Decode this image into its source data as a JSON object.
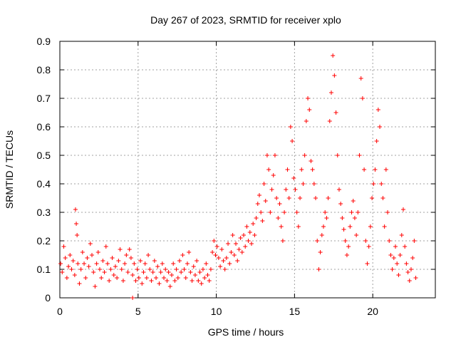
{
  "chart_data": {
    "type": "scatter",
    "title": "Day 267 of 2023, SRMTID for receiver xplo",
    "xlabel": "GPS time / hours",
    "ylabel": "SRMTID / TECUs",
    "xlim": [
      0,
      24
    ],
    "ylim": [
      0,
      0.9
    ],
    "x_ticks": [
      "0",
      "5",
      "10",
      "15",
      "20"
    ],
    "y_ticks": [
      "0",
      "0.1",
      "0.2",
      "0.3",
      "0.4",
      "0.5",
      "0.6",
      "0.7",
      "0.8",
      "0.9"
    ],
    "grid": true,
    "marker": "+",
    "color": "#ff0000",
    "series": [
      {
        "name": "SRMTID",
        "points": [
          [
            0.05,
            0.12
          ],
          [
            0.15,
            0.09
          ],
          [
            0.25,
            0.18
          ],
          [
            0.35,
            0.14
          ],
          [
            0.45,
            0.07
          ],
          [
            0.55,
            0.11
          ],
          [
            0.65,
            0.15
          ],
          [
            0.75,
            0.1
          ],
          [
            0.85,
            0.13
          ],
          [
            0.95,
            0.08
          ],
          [
            1.0,
            0.31
          ],
          [
            1.05,
            0.26
          ],
          [
            1.1,
            0.22
          ],
          [
            1.15,
            0.12
          ],
          [
            1.25,
            0.05
          ],
          [
            1.35,
            0.1
          ],
          [
            1.45,
            0.16
          ],
          [
            1.55,
            0.12
          ],
          [
            1.65,
            0.07
          ],
          [
            1.75,
            0.14
          ],
          [
            1.85,
            0.11
          ],
          [
            1.95,
            0.19
          ],
          [
            2.05,
            0.15
          ],
          [
            2.15,
            0.09
          ],
          [
            2.25,
            0.04
          ],
          [
            2.35,
            0.12
          ],
          [
            2.45,
            0.16
          ],
          [
            2.55,
            0.1
          ],
          [
            2.65,
            0.07
          ],
          [
            2.75,
            0.13
          ],
          [
            2.85,
            0.09
          ],
          [
            2.95,
            0.18
          ],
          [
            3.05,
            0.12
          ],
          [
            3.15,
            0.06
          ],
          [
            3.25,
            0.1
          ],
          [
            3.35,
            0.14
          ],
          [
            3.45,
            0.08
          ],
          [
            3.55,
            0.11
          ],
          [
            3.65,
            0.07
          ],
          [
            3.75,
            0.13
          ],
          [
            3.85,
            0.17
          ],
          [
            3.95,
            0.1
          ],
          [
            4.05,
            0.06
          ],
          [
            4.15,
            0.12
          ],
          [
            4.25,
            0.15
          ],
          [
            4.35,
            0.09
          ],
          [
            4.45,
            0.17
          ],
          [
            4.55,
            0.14
          ],
          [
            4.65,
            0.08
          ],
          [
            4.75,
            0.12
          ],
          [
            4.85,
            0.06
          ],
          [
            4.95,
            0.1
          ],
          [
            5.05,
            0.07
          ],
          [
            5.15,
            0.13
          ],
          [
            5.25,
            0.05
          ],
          [
            5.35,
            0.09
          ],
          [
            5.45,
            0.12
          ],
          [
            5.55,
            0.07
          ],
          [
            5.65,
            0.15
          ],
          [
            5.75,
            0.1
          ],
          [
            5.85,
            0.06
          ],
          [
            5.95,
            0.09
          ],
          [
            6.05,
            0.13
          ],
          [
            6.15,
            0.07
          ],
          [
            6.25,
            0.11
          ],
          [
            6.35,
            0.05
          ],
          [
            6.45,
            0.09
          ],
          [
            6.55,
            0.12
          ],
          [
            6.65,
            0.07
          ],
          [
            6.75,
            0.1
          ],
          [
            6.85,
            0.06
          ],
          [
            6.95,
            0.09
          ],
          [
            7.05,
            0.04
          ],
          [
            7.15,
            0.08
          ],
          [
            7.25,
            0.12
          ],
          [
            7.35,
            0.06
          ],
          [
            7.45,
            0.1
          ],
          [
            7.55,
            0.07
          ],
          [
            7.65,
            0.13
          ],
          [
            7.75,
            0.09
          ],
          [
            7.85,
            0.15
          ],
          [
            7.95,
            0.1
          ],
          [
            8.05,
            0.07
          ],
          [
            8.15,
            0.12
          ],
          [
            8.25,
            0.16
          ],
          [
            8.35,
            0.09
          ],
          [
            8.45,
            0.06
          ],
          [
            8.55,
            0.11
          ],
          [
            8.65,
            0.08
          ],
          [
            8.75,
            0.13
          ],
          [
            8.85,
            0.06
          ],
          [
            8.95,
            0.09
          ],
          [
            9.05,
            0.05
          ],
          [
            9.15,
            0.1
          ],
          [
            9.25,
            0.07
          ],
          [
            9.35,
            0.12
          ],
          [
            9.45,
            0.08
          ],
          [
            9.55,
            0.06
          ],
          [
            9.65,
            0.1
          ],
          [
            9.75,
            0.16
          ],
          [
            9.85,
            0.2
          ],
          [
            9.95,
            0.15
          ],
          [
            10.05,
            0.18
          ],
          [
            10.15,
            0.14
          ],
          [
            10.25,
            0.11
          ],
          [
            10.35,
            0.17
          ],
          [
            10.45,
            0.13
          ],
          [
            10.55,
            0.1
          ],
          [
            10.65,
            0.14
          ],
          [
            10.75,
            0.19
          ],
          [
            10.85,
            0.12
          ],
          [
            10.95,
            0.16
          ],
          [
            11.05,
            0.22
          ],
          [
            11.15,
            0.15
          ],
          [
            11.25,
            0.19
          ],
          [
            11.35,
            0.13
          ],
          [
            11.45,
            0.17
          ],
          [
            11.55,
            0.21
          ],
          [
            11.65,
            0.16
          ],
          [
            11.75,
            0.22
          ],
          [
            11.85,
            0.18
          ],
          [
            11.95,
            0.25
          ],
          [
            12.05,
            0.2
          ],
          [
            12.15,
            0.23
          ],
          [
            12.25,
            0.19
          ],
          [
            12.35,
            0.26
          ],
          [
            12.45,
            0.22
          ],
          [
            12.55,
            0.28
          ],
          [
            12.65,
            0.33
          ],
          [
            12.75,
            0.36
          ],
          [
            12.85,
            0.3
          ],
          [
            12.95,
            0.27
          ],
          [
            13.05,
            0.4
          ],
          [
            13.15,
            0.34
          ],
          [
            13.25,
            0.5
          ],
          [
            13.35,
            0.45
          ],
          [
            13.45,
            0.3
          ],
          [
            13.55,
            0.38
          ],
          [
            13.65,
            0.43
          ],
          [
            13.75,
            0.5
          ],
          [
            13.85,
            0.35
          ],
          [
            13.95,
            0.28
          ],
          [
            14.05,
            0.33
          ],
          [
            14.15,
            0.25
          ],
          [
            14.25,
            0.2
          ],
          [
            14.35,
            0.3
          ],
          [
            14.45,
            0.38
          ],
          [
            14.55,
            0.45
          ],
          [
            14.65,
            0.35
          ],
          [
            14.75,
            0.6
          ],
          [
            14.85,
            0.55
          ],
          [
            14.95,
            0.42
          ],
          [
            15.05,
            0.38
          ],
          [
            15.15,
            0.3
          ],
          [
            15.25,
            0.25
          ],
          [
            15.35,
            0.35
          ],
          [
            15.45,
            0.45
          ],
          [
            15.55,
            0.4
          ],
          [
            15.65,
            0.5
          ],
          [
            15.75,
            0.62
          ],
          [
            15.85,
            0.7
          ],
          [
            15.95,
            0.66
          ],
          [
            16.05,
            0.48
          ],
          [
            16.15,
            0.45
          ],
          [
            16.25,
            0.4
          ],
          [
            16.35,
            0.35
          ],
          [
            16.45,
            0.2
          ],
          [
            16.55,
            0.1
          ],
          [
            16.65,
            0.16
          ],
          [
            16.75,
            0.22
          ],
          [
            16.85,
            0.25
          ],
          [
            16.95,
            0.3
          ],
          [
            17.05,
            0.28
          ],
          [
            17.15,
            0.35
          ],
          [
            17.25,
            0.62
          ],
          [
            17.35,
            0.72
          ],
          [
            17.45,
            0.85
          ],
          [
            17.55,
            0.78
          ],
          [
            17.65,
            0.65
          ],
          [
            17.75,
            0.5
          ],
          [
            17.85,
            0.38
          ],
          [
            17.95,
            0.33
          ],
          [
            18.05,
            0.28
          ],
          [
            18.15,
            0.24
          ],
          [
            18.25,
            0.2
          ],
          [
            18.35,
            0.15
          ],
          [
            18.45,
            0.18
          ],
          [
            18.55,
            0.25
          ],
          [
            18.65,
            0.3
          ],
          [
            18.75,
            0.34
          ],
          [
            18.85,
            0.28
          ],
          [
            18.95,
            0.22
          ],
          [
            19.05,
            0.3
          ],
          [
            19.15,
            0.5
          ],
          [
            19.25,
            0.77
          ],
          [
            19.35,
            0.7
          ],
          [
            19.45,
            0.45
          ],
          [
            19.55,
            0.2
          ],
          [
            19.65,
            0.12
          ],
          [
            19.75,
            0.18
          ],
          [
            19.85,
            0.25
          ],
          [
            19.95,
            0.35
          ],
          [
            20.05,
            0.4
          ],
          [
            20.15,
            0.45
          ],
          [
            20.25,
            0.55
          ],
          [
            20.35,
            0.66
          ],
          [
            20.45,
            0.6
          ],
          [
            20.55,
            0.4
          ],
          [
            20.65,
            0.35
          ],
          [
            20.75,
            0.25
          ],
          [
            20.85,
            0.45
          ],
          [
            20.95,
            0.3
          ],
          [
            21.05,
            0.2
          ],
          [
            21.15,
            0.15
          ],
          [
            21.25,
            0.1
          ],
          [
            21.35,
            0.14
          ],
          [
            21.45,
            0.18
          ],
          [
            21.55,
            0.12
          ],
          [
            21.65,
            0.08
          ],
          [
            21.75,
            0.15
          ],
          [
            21.85,
            0.22
          ],
          [
            21.95,
            0.31
          ],
          [
            22.05,
            0.18
          ],
          [
            22.15,
            0.12
          ],
          [
            22.25,
            0.09
          ],
          [
            22.35,
            0.06
          ],
          [
            22.45,
            0.1
          ],
          [
            22.55,
            0.14
          ],
          [
            22.65,
            0.2
          ],
          [
            22.75,
            0.07
          ],
          [
            4.65,
            0.0
          ]
        ]
      }
    ]
  }
}
